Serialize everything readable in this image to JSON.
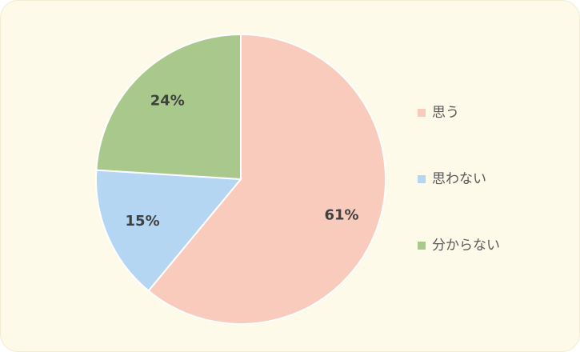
{
  "chart_data": {
    "type": "pie",
    "categories": [
      "思う",
      "思わない",
      "分からない"
    ],
    "values": [
      61,
      15,
      24
    ],
    "value_labels": [
      "61%",
      "15%",
      "24%"
    ],
    "colors": [
      "#f8cbbd",
      "#b4d6f2",
      "#a8c98b"
    ],
    "legend": "right"
  }
}
